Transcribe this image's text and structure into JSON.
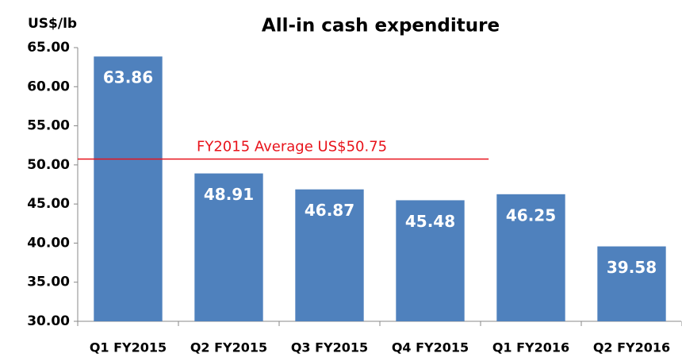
{
  "chart_data": {
    "type": "bar",
    "title": "All-in cash expenditure",
    "y_axis_label": "US$/lb",
    "categories": [
      "Q1 FY2015",
      "Q2 FY2015",
      "Q3 FY2015",
      "Q4 FY2015",
      "Q1 FY2016",
      "Q2 FY2016"
    ],
    "values": [
      63.86,
      48.91,
      46.87,
      45.48,
      46.25,
      39.58
    ],
    "color": "#4f81bd",
    "ylim": [
      30,
      65
    ],
    "yticks": [
      {
        "value": 30,
        "label": "30.00"
      },
      {
        "value": 35,
        "label": "35.00"
      },
      {
        "value": 40,
        "label": "40.00"
      },
      {
        "value": 45,
        "label": "45.00"
      },
      {
        "value": 50,
        "label": "50.00"
      },
      {
        "value": 55,
        "label": "55.00"
      },
      {
        "value": 60,
        "label": "60.00"
      },
      {
        "value": 65,
        "label": "65.00"
      }
    ],
    "grid": false,
    "reference_line": {
      "value": 50.75,
      "label": "FY2015 Average US$50.75",
      "color": "#e8131b"
    }
  }
}
